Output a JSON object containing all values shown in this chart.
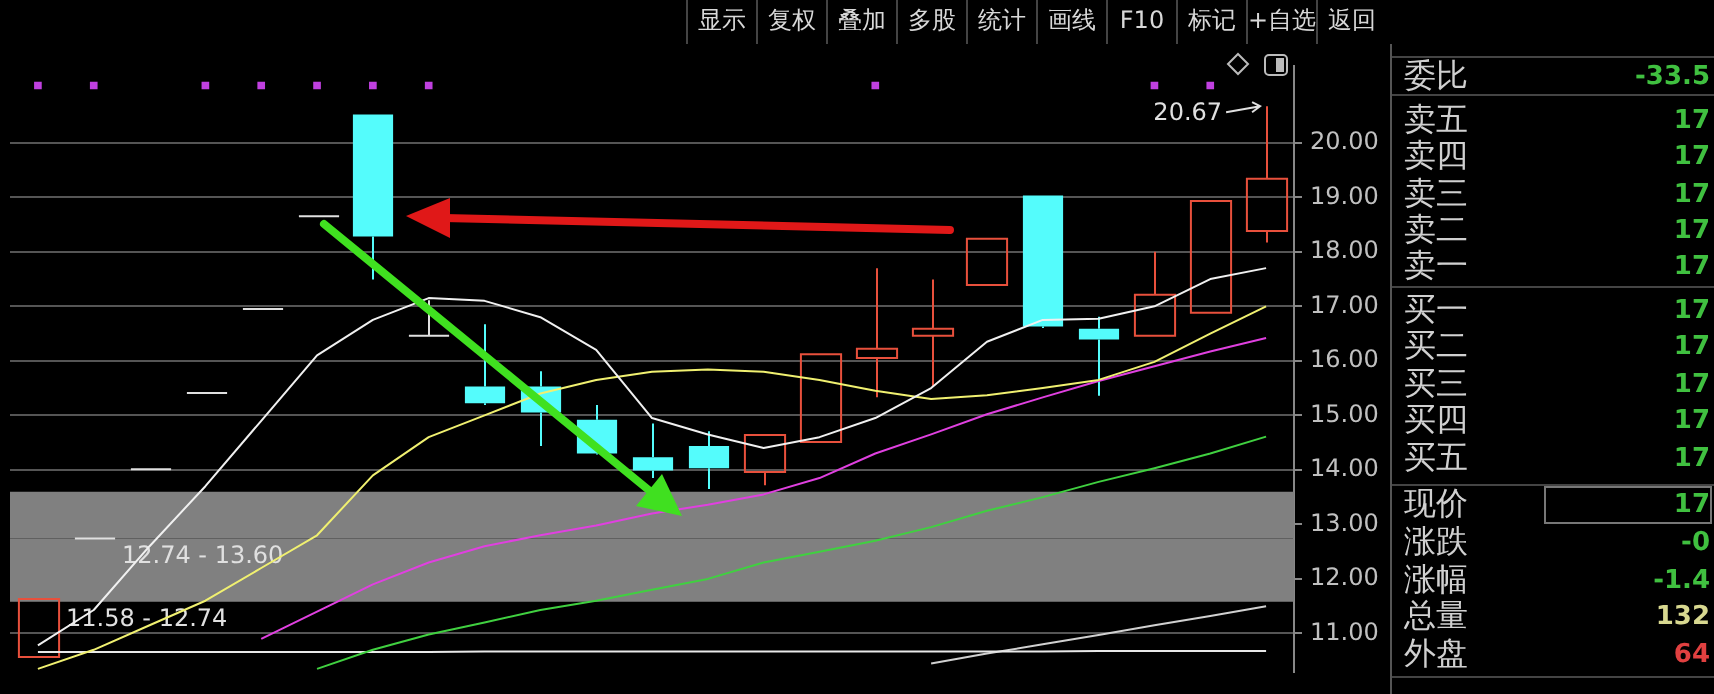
{
  "chart_data": [
    {
      "type": "other",
      "annotations": [
        "显示",
        "复权",
        "叠加",
        "多股",
        "统计",
        "画线",
        "F10",
        "标记",
        "+自选",
        "返回"
      ]
    },
    {
      "type": "candlestick",
      "categories": [
        null,
        null,
        null,
        null,
        null,
        null,
        null,
        null,
        null,
        null,
        null,
        null,
        null,
        null,
        null,
        null,
        null,
        null,
        null,
        null,
        null,
        null,
        null
      ],
      "ohlc": [
        [
          10.57,
          11.63,
          10.57,
          11.63
        ],
        [
          12.74,
          12.74,
          12.74,
          12.74
        ],
        [
          14.01,
          14.01,
          14.01,
          14.01
        ],
        [
          15.41,
          15.41,
          15.41,
          15.41
        ],
        [
          16.95,
          16.95,
          16.95,
          16.95
        ],
        [
          18.65,
          18.65,
          18.65,
          18.65
        ],
        [
          20.52,
          20.52,
          17.49,
          18.28
        ],
        [
          16.46,
          17.11,
          16.46,
          16.46
        ],
        [
          15.53,
          16.67,
          15.19,
          15.22
        ],
        [
          15.53,
          15.81,
          14.44,
          15.05
        ],
        [
          14.92,
          15.19,
          14.28,
          14.3
        ],
        [
          14.23,
          14.85,
          13.85,
          13.99
        ],
        [
          14.44,
          14.71,
          13.65,
          14.03
        ],
        [
          13.96,
          14.66,
          13.72,
          14.64
        ],
        [
          14.51,
          16.12,
          14.51,
          16.12
        ],
        [
          16.05,
          17.7,
          15.33,
          16.22
        ],
        [
          16.46,
          17.49,
          15.53,
          16.59
        ],
        [
          17.39,
          18.24,
          17.39,
          18.24
        ],
        [
          19.03,
          19.03,
          16.6,
          16.63
        ],
        [
          16.59,
          16.81,
          15.36,
          16.39
        ],
        [
          16.46,
          18.0,
          16.46,
          17.21
        ],
        [
          16.88,
          18.93,
          16.88,
          18.93
        ],
        [
          18.38,
          20.67,
          18.17,
          19.34
        ]
      ],
      "colors": [
        "#e8503c",
        "#e0e0e0",
        "#e0e0e0",
        "#e0e0e0",
        "#e0e0e0",
        "#e0e0e0",
        "#54fcfc",
        "#e0e0e0",
        "#54fcfc",
        "#54fcfc",
        "#54fcfc",
        "#54fcfc",
        "#54fcfc",
        "#e8503c",
        "#e8503c",
        "#e8503c",
        "#e8503c",
        "#e8503c",
        "#54fcfc",
        "#54fcfc",
        "#e8503c",
        "#e8503c",
        "#e8503c"
      ],
      "series": [
        {
          "type": "line",
          "color": "#f0f0f0",
          "values": [
            10.78,
            11.43,
            12.6,
            13.7,
            14.9,
            16.1,
            16.75,
            17.15,
            17.1,
            16.8,
            16.2,
            14.95,
            14.65,
            14.4,
            14.6,
            14.95,
            15.5,
            16.35,
            16.75,
            16.77,
            17.0,
            17.5,
            17.7
          ]
        },
        {
          "type": "line",
          "color": "#f0f070",
          "values": [
            10.35,
            10.7,
            11.15,
            11.6,
            12.2,
            12.8,
            13.9,
            14.6,
            15.0,
            15.4,
            15.65,
            15.8,
            15.84,
            15.8,
            15.65,
            15.45,
            15.3,
            15.37,
            15.5,
            15.65,
            15.98,
            16.5,
            17.0
          ]
        },
        {
          "type": "line",
          "color": "#e040e0",
          "values": [
            null,
            null,
            null,
            null,
            10.9,
            11.4,
            11.9,
            12.3,
            12.6,
            12.8,
            12.98,
            13.2,
            13.36,
            13.55,
            13.85,
            14.3,
            14.65,
            15.02,
            15.33,
            15.63,
            15.9,
            16.17,
            16.42
          ]
        },
        {
          "type": "line",
          "color": "#40d040",
          "values": [
            null,
            null,
            null,
            null,
            null,
            10.35,
            10.7,
            10.98,
            11.2,
            11.43,
            11.6,
            11.8,
            12.0,
            12.3,
            12.5,
            12.7,
            12.95,
            13.25,
            13.5,
            13.78,
            14.03,
            14.3,
            14.61
          ]
        },
        {
          "type": "line",
          "color": "#e8e8e8",
          "values": [
            10.66,
            10.66,
            10.66,
            10.66,
            10.66,
            10.66,
            10.66,
            10.66,
            10.67,
            10.67,
            10.67,
            10.67,
            10.67,
            10.67,
            10.67,
            10.67,
            10.67,
            10.67,
            10.67,
            10.68,
            10.68,
            10.68,
            10.68
          ]
        },
        {
          "type": "line",
          "color": "#d0d0d0",
          "values": [
            null,
            null,
            null,
            null,
            null,
            null,
            null,
            null,
            null,
            null,
            null,
            null,
            null,
            null,
            null,
            null,
            10.45,
            10.63,
            10.8,
            10.97,
            11.15,
            11.32,
            11.5
          ]
        },
        {
          "type": "scatter",
          "color": "#c040e0",
          "marker": "square",
          "values": [
            21.05,
            21.05,
            null,
            21.05,
            21.05,
            21.05,
            21.05,
            21.05,
            null,
            null,
            null,
            null,
            null,
            null,
            null,
            21.05,
            null,
            null,
            null,
            null,
            21.05,
            21.05,
            null
          ]
        }
      ],
      "ylim": [
        10.3,
        21.4
      ],
      "yticks": [
        {
          "value": 11,
          "label": "11.00"
        },
        {
          "value": 12,
          "label": "12.00"
        },
        {
          "value": 13,
          "label": "13.00"
        },
        {
          "value": 14,
          "label": "14.00"
        },
        {
          "value": 15,
          "label": "15.00"
        },
        {
          "value": 16,
          "label": "16.00"
        },
        {
          "value": 17,
          "label": "17.00"
        },
        {
          "value": 18,
          "label": "18.00"
        },
        {
          "value": 19,
          "label": "19.00"
        },
        {
          "value": 20,
          "label": "20.00"
        }
      ],
      "tick_labels": "y",
      "grid": "y",
      "bands": [
        {
          "axis": "y",
          "from": 12.74,
          "to": 13.6,
          "label": "12.74 - 13.60",
          "color": "#808080"
        },
        {
          "axis": "y",
          "from": 11.58,
          "to": 12.74,
          "label": "11.58 - 12.74",
          "color": "#808080"
        }
      ],
      "annotations": [
        "20.67"
      ]
    },
    {
      "type": "other",
      "annotations": [
        "委比",
        "-33.5",
        "卖五",
        "17",
        "卖四",
        "17",
        "卖三",
        "17",
        "卖二",
        "17",
        "卖一",
        "17",
        "买一",
        "17",
        "买二",
        "17",
        "买三",
        "17",
        "买四",
        "17",
        "买五",
        "17",
        "现价",
        "17",
        "涨跌",
        "-0",
        "涨幅",
        "-1.4",
        "总量",
        "132",
        "外盘",
        "64"
      ],
      "colors": [
        "#40c040",
        "#40c040",
        "#40c040",
        "#40c040",
        "#40c040",
        "#40c040",
        "#40c040",
        "#40c040",
        "#40c040",
        "#40c040",
        "#40c040",
        "#40c040",
        "#40c040",
        "#40c040",
        "#d8d890",
        "#e04040"
      ]
    }
  ]
}
